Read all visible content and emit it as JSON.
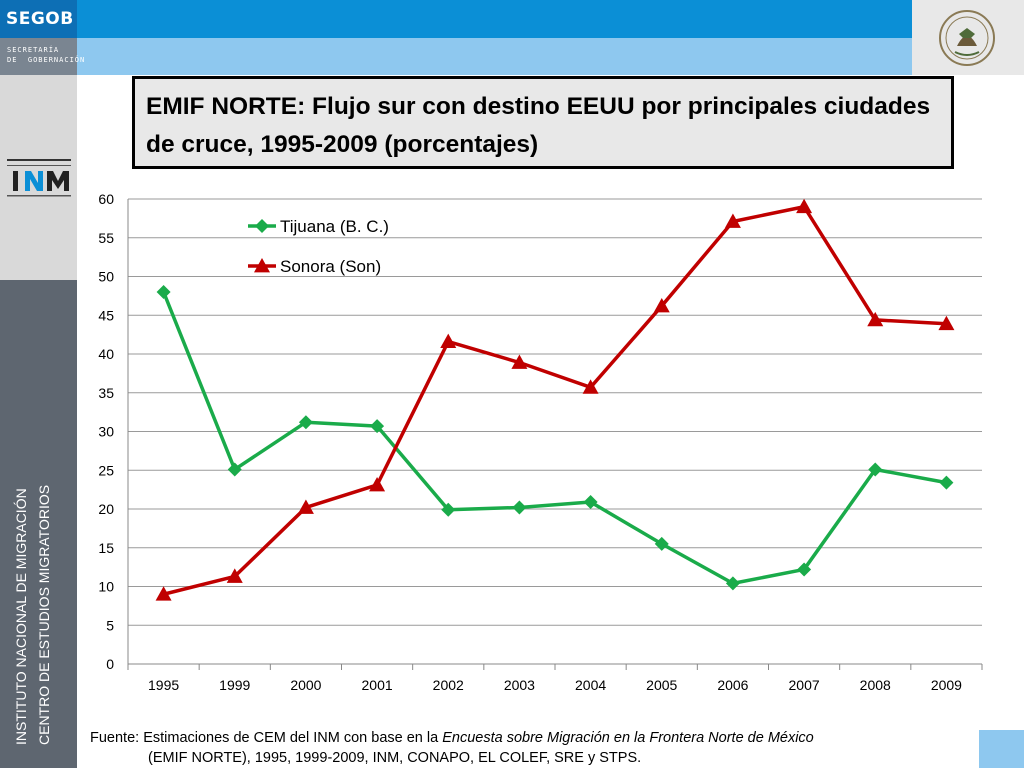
{
  "header": {
    "logo_text": "SEGOB",
    "subtitle": "SECRETARÍA\nDE  GOBERNACIÓN"
  },
  "sidebar": {
    "line1": "INSTITUTO NACIONAL DE MIGRACIÓN",
    "line2": "CENTRO DE ESTUDIOS MIGRATORIOS"
  },
  "title": {
    "text": "EMIF NORTE: Flujo sur con destino EEUU por principales ciudades de cruce, 1995-2009 (porcentajes)"
  },
  "source": {
    "prefix": "Fuente: Estimaciones de CEM del INM con base en la ",
    "survey": "Encuesta sobre Migración en la Frontera Norte de México",
    "line2": "(EMIF NORTE), 1995, 1999-2009, INM, CONAPO, EL COLEF, SRE y STPS."
  },
  "colors": {
    "tijuana": "#1aab4a",
    "sonora": "#c00000",
    "header_blue": "#0b8fd6",
    "header_light": "#8ec8ef",
    "sidebar_dark": "#5e6670"
  },
  "chart_data": {
    "type": "line",
    "title": "",
    "xlabel": "",
    "ylabel": "",
    "ylim": [
      0,
      60
    ],
    "yticks": [
      0,
      5,
      10,
      15,
      20,
      25,
      30,
      35,
      40,
      45,
      50,
      55,
      60
    ],
    "grid": true,
    "legend_position": "top-left",
    "categories": [
      "1995",
      "1999",
      "2000",
      "2001",
      "2002",
      "2003",
      "2004",
      "2005",
      "2006",
      "2007",
      "2008",
      "2009"
    ],
    "series": [
      {
        "name": "Tijuana (B. C.)",
        "marker": "diamond",
        "color": "#1aab4a",
        "values": [
          48.0,
          25.1,
          31.2,
          30.7,
          19.9,
          20.2,
          20.9,
          15.5,
          10.4,
          12.2,
          25.1,
          23.4
        ]
      },
      {
        "name": "Sonora (Son)",
        "marker": "triangle",
        "color": "#c00000",
        "values": [
          9.0,
          11.3,
          20.2,
          23.1,
          41.6,
          38.9,
          35.7,
          46.2,
          57.1,
          59.0,
          44.4,
          43.9
        ]
      }
    ]
  }
}
